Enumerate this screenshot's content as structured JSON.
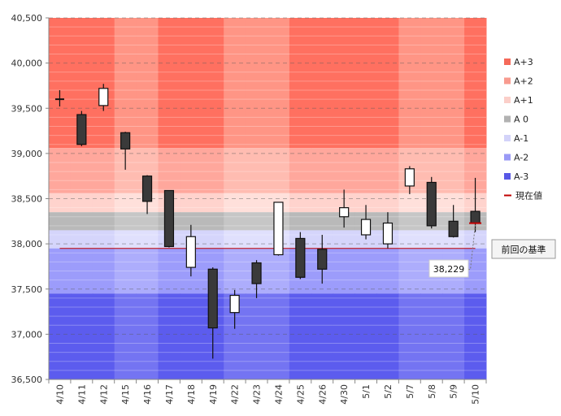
{
  "chart_data": {
    "type": "candlestick",
    "categories": [
      "4/10",
      "4/11",
      "4/12",
      "4/15",
      "4/16",
      "4/17",
      "4/18",
      "4/19",
      "4/22",
      "4/23",
      "4/24",
      "4/25",
      "4/26",
      "4/30",
      "5/1",
      "5/2",
      "5/7",
      "5/8",
      "5/9",
      "5/10"
    ],
    "candles": [
      {
        "x": "4/10",
        "open": 39600,
        "high": 39700,
        "low": 39520,
        "close": 39590
      },
      {
        "x": "4/11",
        "open": 39430,
        "high": 39470,
        "low": 39080,
        "close": 39100
      },
      {
        "x": "4/12",
        "open": 39530,
        "high": 39770,
        "low": 39470,
        "close": 39720
      },
      {
        "x": "4/15",
        "open": 39230,
        "high": 39240,
        "low": 38820,
        "close": 39050
      },
      {
        "x": "4/16",
        "open": 38750,
        "high": 38760,
        "low": 38330,
        "close": 38470
      },
      {
        "x": "4/17",
        "open": 38590,
        "high": 38590,
        "low": 37960,
        "close": 37970
      },
      {
        "x": "4/18",
        "open": 37740,
        "high": 38210,
        "low": 37640,
        "close": 38080
      },
      {
        "x": "4/19",
        "open": 37720,
        "high": 37740,
        "low": 36730,
        "close": 37070
      },
      {
        "x": "4/22",
        "open": 37240,
        "high": 37490,
        "low": 37060,
        "close": 37430
      },
      {
        "x": "4/23",
        "open": 37790,
        "high": 37820,
        "low": 37400,
        "close": 37560
      },
      {
        "x": "4/24",
        "open": 37880,
        "high": 38460,
        "low": 37870,
        "close": 38460
      },
      {
        "x": "4/25",
        "open": 38060,
        "high": 38130,
        "low": 37610,
        "close": 37630
      },
      {
        "x": "4/26",
        "open": 37940,
        "high": 38100,
        "low": 37560,
        "close": 37720
      },
      {
        "x": "4/30",
        "open": 38300,
        "high": 38600,
        "low": 38180,
        "close": 38400
      },
      {
        "x": "5/1",
        "open": 38100,
        "high": 38430,
        "low": 38050,
        "close": 38270
      },
      {
        "x": "5/2",
        "open": 38000,
        "high": 38350,
        "low": 37950,
        "close": 38230
      },
      {
        "x": "5/7",
        "open": 38640,
        "high": 38860,
        "low": 38550,
        "close": 38830
      },
      {
        "x": "5/8",
        "open": 38680,
        "high": 38740,
        "low": 38170,
        "close": 38200
      },
      {
        "x": "5/9",
        "open": 38250,
        "high": 38430,
        "low": 38070,
        "close": 38080
      },
      {
        "x": "5/10",
        "open": 38360,
        "high": 38730,
        "low": 38130,
        "close": 38229
      }
    ],
    "ylim": [
      36500,
      40500
    ],
    "y_ticks": [
      "36,500",
      "37,000",
      "37,500",
      "38,000",
      "38,500",
      "39,000",
      "39,500",
      "40,000",
      "40,500"
    ],
    "y_tick_values": [
      36500,
      37000,
      37500,
      38000,
      38500,
      39000,
      39500,
      40000,
      40500
    ],
    "bands": [
      {
        "name": "A+3",
        "from": 39060,
        "to": 40500,
        "color": "#ff7060",
        "color_alt": "#ff9585"
      },
      {
        "name": "A+2",
        "from": 38560,
        "to": 39060,
        "color": "#ffa79c",
        "color_alt": "#ffbcb1"
      },
      {
        "name": "A+1",
        "from": 38350,
        "to": 38560,
        "color": "#ffd3cd",
        "color_alt": "#ffe0db"
      },
      {
        "name": "A 0",
        "from": 38150,
        "to": 38350,
        "color": "#b9b9b9",
        "color_alt": "#c6c6c6"
      },
      {
        "name": "A-1",
        "from": 37950,
        "to": 38150,
        "color": "#d5d5fb",
        "color_alt": "#e0e0fd"
      },
      {
        "name": "A-2",
        "from": 37450,
        "to": 37950,
        "color": "#9c9cfb",
        "color_alt": "#adadfc"
      },
      {
        "name": "A-3",
        "from": 36500,
        "to": 37450,
        "color": "#5c5cee",
        "color_alt": "#7474f2"
      }
    ],
    "alt_column_groups": [
      [
        3,
        4
      ],
      [
        8,
        9,
        10
      ],
      [
        16,
        17,
        18
      ]
    ],
    "current_value": {
      "label": "現在値",
      "value": 38229,
      "text": "38,229",
      "color": "#c00000"
    },
    "reference": {
      "label": "前回の基準",
      "value": 37950
    },
    "legend": [
      {
        "label": "A+3",
        "color": "#f56a5a"
      },
      {
        "label": "A+2",
        "color": "#f89b8f"
      },
      {
        "label": "A+1",
        "color": "#fbcfc9"
      },
      {
        "label": "A 0",
        "color": "#b2b2b2"
      },
      {
        "label": "A-1",
        "color": "#d3d3f9"
      },
      {
        "label": "A-2",
        "color": "#9a9af6"
      },
      {
        "label": "A-3",
        "color": "#5858e6"
      },
      {
        "label": "現在値",
        "color": "#c00000"
      }
    ],
    "up_color": "#ffffff",
    "down_color": "#3a3a3a",
    "legend_position": "right",
    "grid": true
  }
}
